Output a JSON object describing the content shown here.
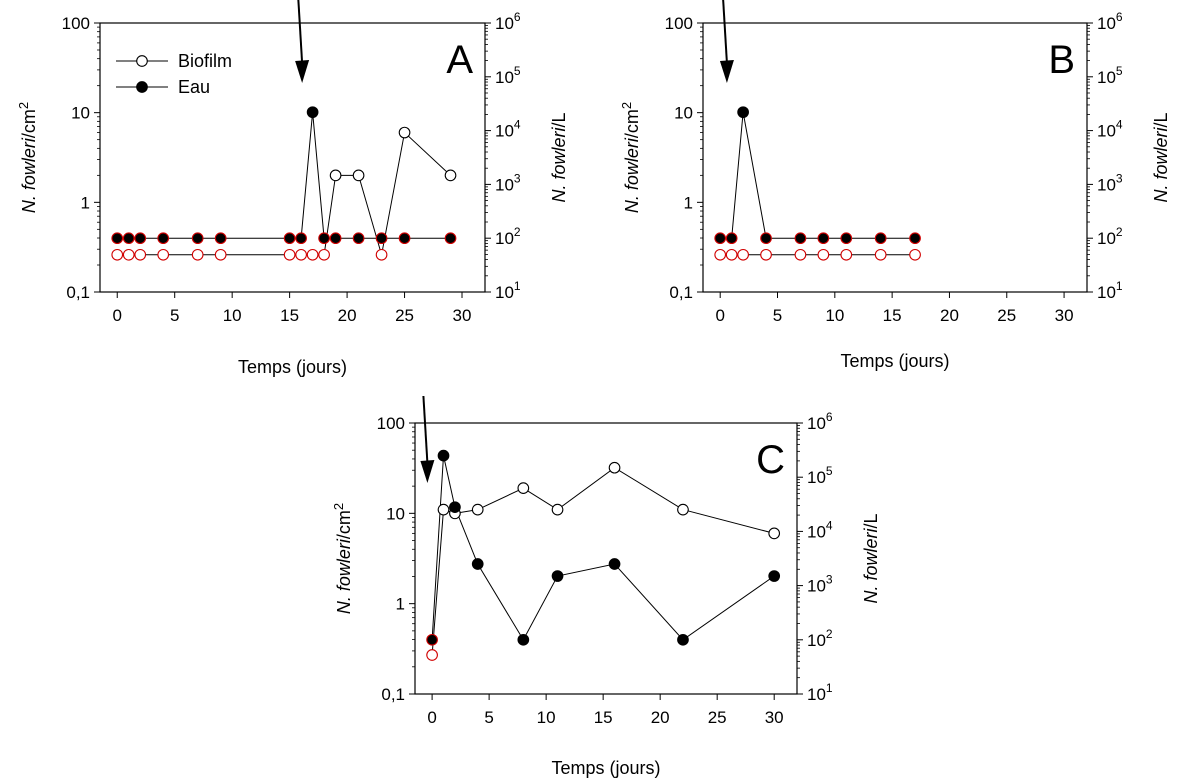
{
  "chart_data": [
    {
      "type": "scatter",
      "panel_label": "A",
      "xlabel": "Temps (jours)",
      "ylabel_italic": "N. fowleri",
      "ylabel_unit": "/cm",
      "ylabel_exp": "2",
      "ylabel_right_italic": "N. fowleri",
      "ylabel_right_unit": "/L",
      "xlim": [
        -1.5,
        32
      ],
      "ylim": [
        0.1,
        100
      ],
      "yscale": "log",
      "y2lim": [
        10,
        1000000
      ],
      "y2scale": "log",
      "x_ticks": [
        "0",
        "5",
        "10",
        "15",
        "20",
        "25",
        "30"
      ],
      "y_ticks": [
        "0,1",
        "1",
        "10",
        "100"
      ],
      "y2_ticks": [
        {
          "base": "10",
          "exp": "1"
        },
        {
          "base": "10",
          "exp": "2"
        },
        {
          "base": "10",
          "exp": "3"
        },
        {
          "base": "10",
          "exp": "4"
        },
        {
          "base": "10",
          "exp": "5"
        },
        {
          "base": "10",
          "exp": "6"
        }
      ],
      "arrow_x": 16,
      "legend": {
        "position": "top-left",
        "items": [
          "Biofilm",
          "Eau"
        ]
      },
      "series": [
        {
          "name": "Biofilm",
          "axis": "left",
          "marker": "open",
          "x": [
            0,
            1,
            2,
            4,
            7,
            9,
            15,
            16,
            17,
            18,
            19,
            21,
            23,
            25,
            29
          ],
          "y": [
            0.26,
            0.26,
            0.26,
            0.26,
            0.26,
            0.26,
            0.26,
            0.26,
            0.26,
            0.26,
            2,
            2,
            0.26,
            6,
            2
          ],
          "red_outline": [
            true,
            true,
            true,
            true,
            true,
            true,
            true,
            true,
            true,
            true,
            false,
            false,
            true,
            false,
            false
          ]
        },
        {
          "name": "Eau",
          "axis": "right",
          "marker": "filled",
          "x": [
            0,
            1,
            2,
            4,
            7,
            9,
            15,
            16,
            17,
            18,
            19,
            21,
            23,
            25,
            29
          ],
          "y": [
            100,
            100,
            100,
            100,
            100,
            100,
            100,
            100,
            22000,
            100,
            100,
            100,
            100,
            100,
            100
          ],
          "red_outline": [
            true,
            true,
            true,
            true,
            true,
            true,
            true,
            true,
            false,
            true,
            true,
            true,
            true,
            true,
            true
          ]
        }
      ]
    },
    {
      "type": "scatter",
      "panel_label": "B",
      "xlabel": "Temps (jours)",
      "ylabel_italic": "N. fowleri",
      "ylabel_unit": "/cm",
      "ylabel_exp": "2",
      "ylabel_right_italic": "N. fowleri",
      "ylabel_right_unit": "/L",
      "xlim": [
        -1.5,
        32
      ],
      "ylim": [
        0.1,
        100
      ],
      "yscale": "log",
      "y2lim": [
        10,
        1000000
      ],
      "y2scale": "log",
      "x_ticks": [
        "0",
        "5",
        "10",
        "15",
        "20",
        "25",
        "30"
      ],
      "y_ticks": [
        "0,1",
        "1",
        "10",
        "100"
      ],
      "y2_ticks": [
        {
          "base": "10",
          "exp": "1"
        },
        {
          "base": "10",
          "exp": "2"
        },
        {
          "base": "10",
          "exp": "3"
        },
        {
          "base": "10",
          "exp": "4"
        },
        {
          "base": "10",
          "exp": "5"
        },
        {
          "base": "10",
          "exp": "6"
        }
      ],
      "arrow_x": 0.5,
      "series": [
        {
          "name": "Biofilm",
          "axis": "left",
          "marker": "open",
          "x": [
            0,
            1,
            2,
            4,
            7,
            9,
            11,
            14,
            17
          ],
          "y": [
            0.26,
            0.26,
            0.26,
            0.26,
            0.26,
            0.26,
            0.26,
            0.26,
            0.26
          ],
          "red_outline": [
            true,
            true,
            true,
            true,
            true,
            true,
            true,
            true,
            true
          ]
        },
        {
          "name": "Eau",
          "axis": "right",
          "marker": "filled",
          "x": [
            0,
            1,
            2,
            4,
            7,
            9,
            11,
            14,
            17
          ],
          "y": [
            100,
            100,
            22000,
            100,
            100,
            100,
            100,
            100,
            100
          ],
          "red_outline": [
            true,
            true,
            false,
            true,
            true,
            true,
            true,
            true,
            true
          ]
        }
      ]
    },
    {
      "type": "scatter",
      "panel_label": "C",
      "xlabel": "Temps (jours)",
      "ylabel_italic": "N. fowleri",
      "ylabel_unit": "/cm",
      "ylabel_exp": "2",
      "ylabel_right_italic": "N. fowleri",
      "ylabel_right_unit": "/L",
      "xlim": [
        -1.5,
        32
      ],
      "ylim": [
        0.1,
        100
      ],
      "yscale": "log",
      "y2lim": [
        10,
        1000000
      ],
      "y2scale": "log",
      "x_ticks": [
        "0",
        "5",
        "10",
        "15",
        "20",
        "25",
        "30"
      ],
      "y_ticks": [
        "0,1",
        "1",
        "10",
        "100"
      ],
      "y2_ticks": [
        {
          "base": "10",
          "exp": "1"
        },
        {
          "base": "10",
          "exp": "2"
        },
        {
          "base": "10",
          "exp": "3"
        },
        {
          "base": "10",
          "exp": "4"
        },
        {
          "base": "10",
          "exp": "5"
        },
        {
          "base": "10",
          "exp": "6"
        }
      ],
      "arrow_x": -0.5,
      "series": [
        {
          "name": "Biofilm",
          "axis": "left",
          "marker": "open",
          "x": [
            0,
            1,
            2,
            4,
            8,
            11,
            16,
            22,
            30
          ],
          "y": [
            0.27,
            11,
            10,
            11,
            19,
            11,
            32,
            11,
            6
          ],
          "red_outline": [
            true,
            false,
            false,
            false,
            false,
            false,
            false,
            false,
            false
          ]
        },
        {
          "name": "Eau",
          "axis": "right",
          "marker": "filled",
          "x": [
            0,
            1,
            2,
            4,
            8,
            11,
            16,
            22,
            30
          ],
          "y": [
            100,
            250000,
            28000,
            2500,
            100,
            1500,
            2500,
            100,
            1500
          ],
          "red_outline": [
            true,
            false,
            false,
            false,
            false,
            false,
            false,
            false,
            false
          ]
        }
      ]
    }
  ]
}
